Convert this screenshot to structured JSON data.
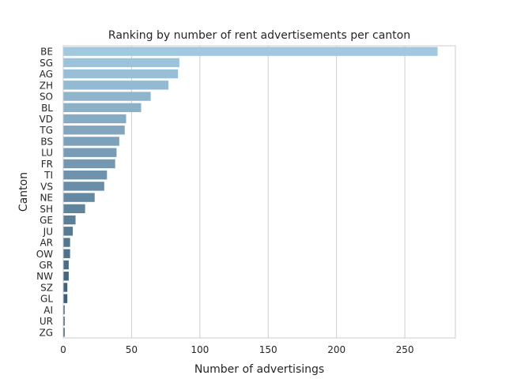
{
  "chart_data": {
    "type": "bar",
    "orientation": "horizontal",
    "title": "Ranking by number of rent advertisements per canton",
    "xlabel": "Number of advertisings",
    "ylabel": "Canton",
    "categories": [
      "BE",
      "SG",
      "AG",
      "ZH",
      "SO",
      "BL",
      "VD",
      "TG",
      "BS",
      "LU",
      "FR",
      "TI",
      "VS",
      "NE",
      "SH",
      "GE",
      "JU",
      "AR",
      "OW",
      "GR",
      "NW",
      "SZ",
      "GL",
      "AI",
      "UR",
      "ZG"
    ],
    "values": [
      274,
      85,
      84,
      77,
      64,
      57,
      46,
      45,
      41,
      39,
      38,
      32,
      30,
      23,
      16,
      9,
      7,
      5,
      5,
      4,
      4,
      3,
      3,
      1,
      1,
      1
    ],
    "xlim": [
      0,
      287
    ],
    "xticks": [
      0,
      50,
      100,
      150,
      200,
      250
    ],
    "grid": true,
    "palette": "Blues_d",
    "colors": {
      "light": "#a2c8e0",
      "dark": "#2e4f6a",
      "grid": "#cccccc",
      "spine": "#cccccc"
    }
  }
}
